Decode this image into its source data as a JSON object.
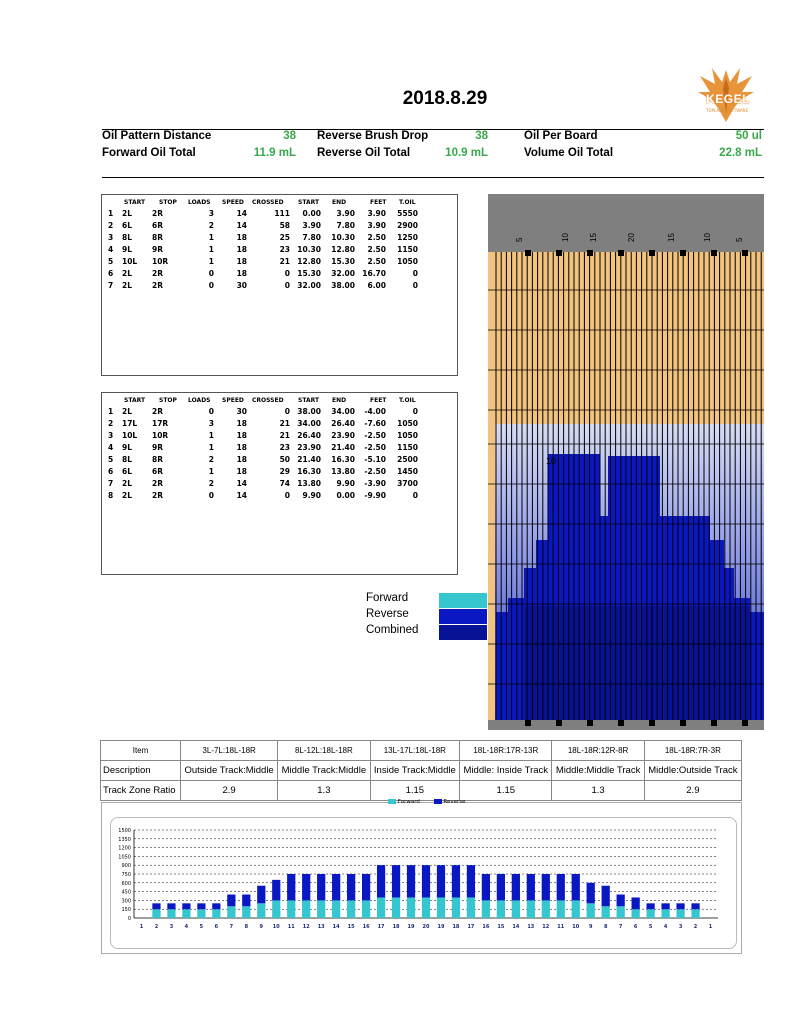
{
  "title": "2018.8.29",
  "logo": {
    "word": "KEGEL",
    "caption": "TOPLANE SOFTWARE"
  },
  "stats": [
    {
      "label": "Oil Pattern Distance",
      "value": "38"
    },
    {
      "label": "Reverse Brush Drop",
      "value": "38"
    },
    {
      "label": "Oil Per Board",
      "value": "50 ul"
    },
    {
      "label": "Forward Oil Total",
      "value": "11.9 mL"
    },
    {
      "label": "Reverse Oil Total",
      "value": "10.9 mL"
    },
    {
      "label": "Volume Oil Total",
      "value": "22.8 mL"
    }
  ],
  "columns": [
    "START",
    "STOP",
    "LOADS",
    "SPEED",
    "CROSSED",
    "START",
    "END",
    "FEET",
    "T.OIL"
  ],
  "forward_table": [
    [
      "1",
      "2L",
      "2R",
      "3",
      "14",
      "111",
      "0.00",
      "3.90",
      "3.90",
      "5550"
    ],
    [
      "2",
      "6L",
      "6R",
      "2",
      "14",
      "58",
      "3.90",
      "7.80",
      "3.90",
      "2900"
    ],
    [
      "3",
      "8L",
      "8R",
      "1",
      "18",
      "25",
      "7.80",
      "10.30",
      "2.50",
      "1250"
    ],
    [
      "4",
      "9L",
      "9R",
      "1",
      "18",
      "23",
      "10.30",
      "12.80",
      "2.50",
      "1150"
    ],
    [
      "5",
      "10L",
      "10R",
      "1",
      "18",
      "21",
      "12.80",
      "15.30",
      "2.50",
      "1050"
    ],
    [
      "6",
      "2L",
      "2R",
      "0",
      "18",
      "0",
      "15.30",
      "32.00",
      "16.70",
      "0"
    ],
    [
      "7",
      "2L",
      "2R",
      "0",
      "30",
      "0",
      "32.00",
      "38.00",
      "6.00",
      "0"
    ]
  ],
  "reverse_table": [
    [
      "1",
      "2L",
      "2R",
      "0",
      "30",
      "0",
      "38.00",
      "34.00",
      "-4.00",
      "0"
    ],
    [
      "2",
      "17L",
      "17R",
      "3",
      "18",
      "21",
      "34.00",
      "26.40",
      "-7.60",
      "1050"
    ],
    [
      "3",
      "10L",
      "10R",
      "1",
      "18",
      "21",
      "26.40",
      "23.90",
      "-2.50",
      "1050"
    ],
    [
      "4",
      "9L",
      "9R",
      "1",
      "18",
      "23",
      "23.90",
      "21.40",
      "-2.50",
      "1150"
    ],
    [
      "5",
      "8L",
      "8R",
      "2",
      "18",
      "50",
      "21.40",
      "16.30",
      "-5.10",
      "2500"
    ],
    [
      "6",
      "6L",
      "6R",
      "1",
      "18",
      "29",
      "16.30",
      "13.80",
      "-2.50",
      "1450"
    ],
    [
      "7",
      "2L",
      "2R",
      "2",
      "14",
      "74",
      "13.80",
      "9.90",
      "-3.90",
      "3700"
    ],
    [
      "8",
      "2L",
      "2R",
      "0",
      "14",
      "0",
      "9.90",
      "0.00",
      "-9.90",
      "0"
    ]
  ],
  "graph": {
    "top_labels": [
      "5",
      "10",
      "15",
      "20",
      "15",
      "10",
      "5"
    ],
    "marker_text": "10"
  },
  "legend": [
    {
      "label": "Forward",
      "color": "#36c6cf"
    },
    {
      "label": "Reverse",
      "color": "#0a18c4"
    },
    {
      "label": "Combined",
      "color": "#071296"
    }
  ],
  "ratio_table": {
    "header": [
      "Item",
      "3L-7L:18L-18R",
      "8L-12L:18L-18R",
      "13L-17L:18L-18R",
      "18L-18R:17R-13R",
      "18L-18R:12R-8R",
      "18L-18R:7R-3R"
    ],
    "description": [
      "Description",
      "Outside Track:Middle",
      "Middle Track:Middle",
      "Inside Track:Middle",
      "Middle: Inside Track",
      "Middle:Middle Track",
      "Middle:Outside Track"
    ],
    "ratio": [
      "Track Zone Ratio",
      "2.9",
      "1.3",
      "1.15",
      "1.15",
      "1.3",
      "2.9"
    ]
  },
  "chart_data": {
    "type": "bar",
    "legend": [
      "Forward",
      "Reverse"
    ],
    "colors": {
      "forward": "#36c6cf",
      "reverse": "#0a18c4"
    },
    "categories": [
      "1",
      "2",
      "3",
      "4",
      "5",
      "6",
      "7",
      "8",
      "9",
      "10",
      "11",
      "12",
      "13",
      "14",
      "15",
      "16",
      "17",
      "18",
      "19",
      "20",
      "19",
      "18",
      "17",
      "16",
      "15",
      "14",
      "13",
      "12",
      "11",
      "10",
      "9",
      "8",
      "7",
      "6",
      "5",
      "4",
      "3",
      "2",
      "1"
    ],
    "series": [
      {
        "name": "Forward",
        "values": [
          0,
          150,
          150,
          150,
          150,
          150,
          200,
          200,
          250,
          300,
          300,
          300,
          300,
          300,
          300,
          300,
          350,
          350,
          350,
          350,
          350,
          350,
          350,
          300,
          300,
          300,
          300,
          300,
          300,
          300,
          250,
          200,
          200,
          150,
          150,
          150,
          150,
          150,
          0
        ]
      },
      {
        "name": "Reverse",
        "values": [
          0,
          100,
          100,
          100,
          100,
          100,
          200,
          200,
          300,
          350,
          450,
          450,
          450,
          450,
          450,
          450,
          550,
          550,
          550,
          550,
          550,
          550,
          550,
          450,
          450,
          450,
          450,
          450,
          450,
          450,
          350,
          350,
          200,
          200,
          100,
          100,
          100,
          100,
          0
        ]
      }
    ],
    "yticks": [
      0,
      150,
      300,
      450,
      600,
      750,
      900,
      1050,
      1200,
      1350,
      1500
    ],
    "ylim": [
      0,
      1500
    ],
    "stacked": true
  }
}
